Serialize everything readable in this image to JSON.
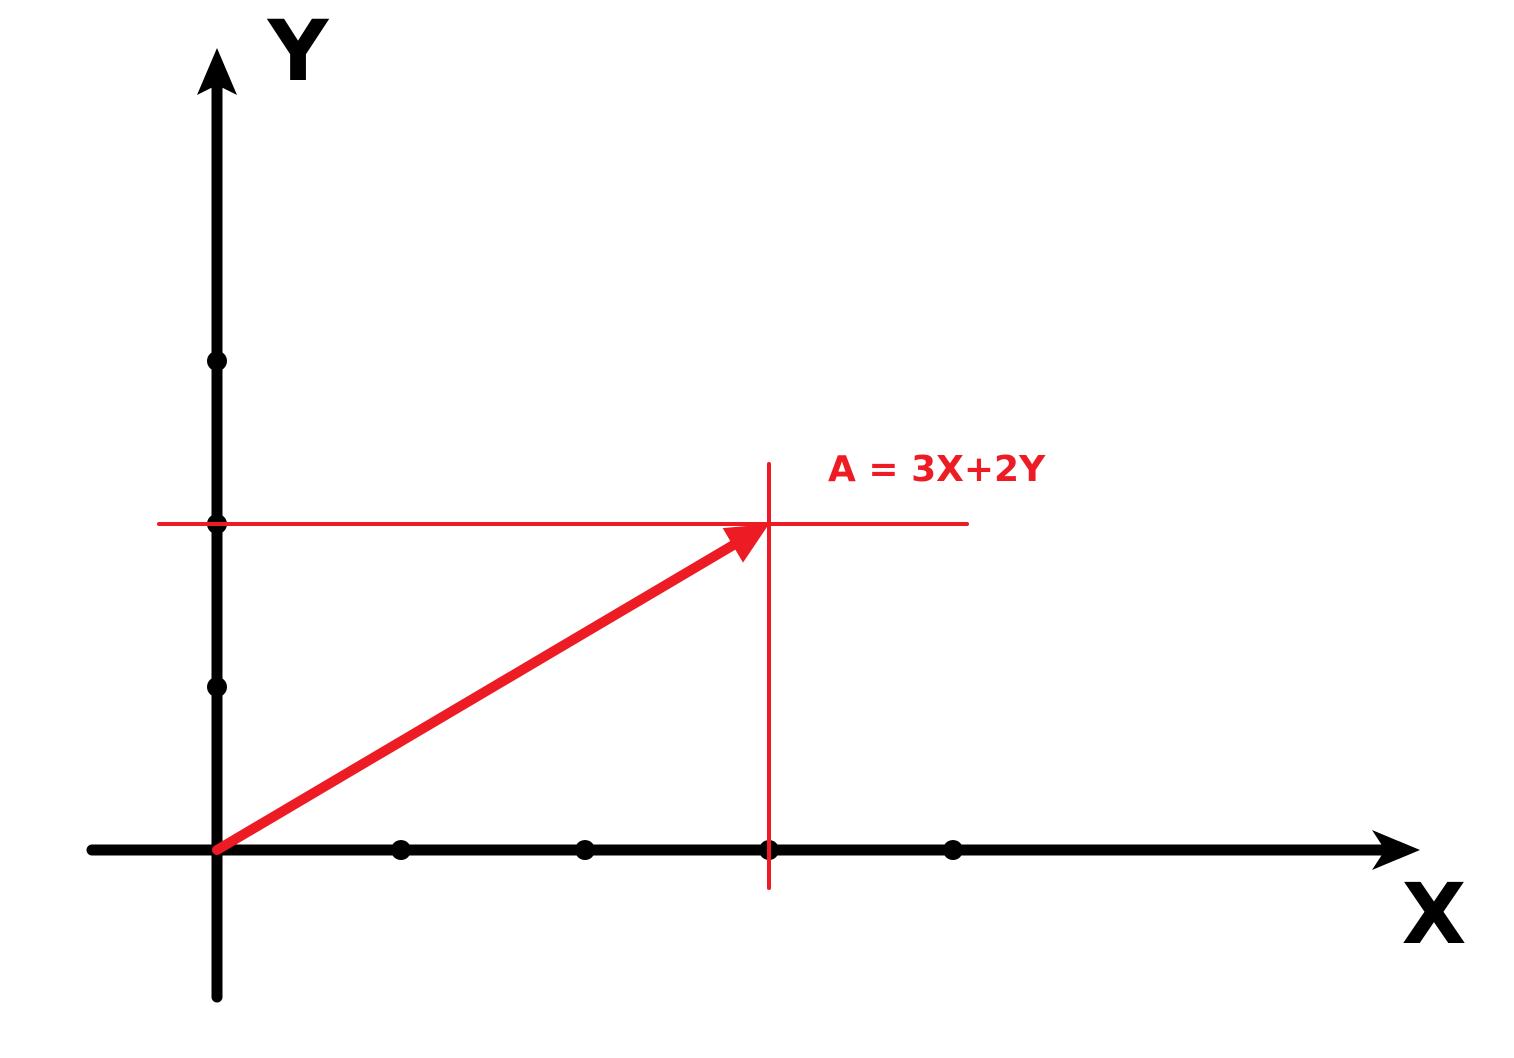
{
  "colors": {
    "axis": "#000000",
    "vector": "#ed1c24",
    "background": "#ffffff"
  },
  "axes": {
    "x_label": "X",
    "y_label": "Y",
    "x_ticks": [
      1,
      2,
      3,
      4
    ],
    "y_ticks": [
      1,
      2,
      3
    ]
  },
  "vector": {
    "label": "A = 3X+2Y",
    "x": 3,
    "y": 2
  }
}
